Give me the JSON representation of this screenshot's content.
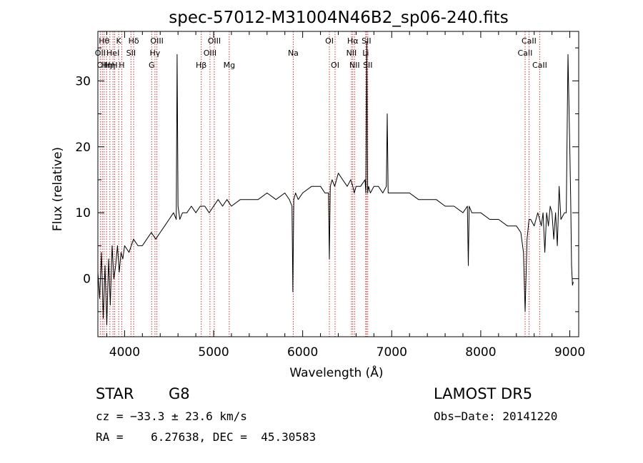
{
  "chart_data": {
    "type": "line",
    "title": "spec-57012-M31004N46B2_sp06-240.fits",
    "xlabel": "Wavelength (Å)",
    "ylabel": "Flux (relative)",
    "xlim": [
      3700,
      9100
    ],
    "ylim": [
      -8.8,
      37.5
    ],
    "xticks": [
      4000,
      5000,
      6000,
      7000,
      8000,
      9000
    ],
    "yticks": [
      0,
      10,
      20,
      30
    ],
    "grid": false,
    "legend": "none",
    "line_color": "#000000",
    "marker_color": "#cc3333",
    "series": [
      {
        "x": [
          3700,
          3720,
          3740,
          3760,
          3780,
          3800,
          3820,
          3840,
          3860,
          3880,
          3900,
          3920,
          3940,
          3960,
          3980,
          4000,
          4050,
          4100,
          4150,
          4200,
          4250,
          4300,
          4350,
          4400,
          4450,
          4500,
          4550,
          4580,
          4590,
          4600,
          4620,
          4650,
          4700,
          4750,
          4800,
          4850,
          4900,
          4950,
          5000,
          5050,
          5100,
          5150,
          5200,
          5300,
          5400,
          5500,
          5600,
          5700,
          5800,
          5850,
          5880,
          5890,
          5900,
          5920,
          5950,
          6000,
          6100,
          6200,
          6250,
          6290,
          6300,
          6310,
          6330,
          6360,
          6400,
          6450,
          6500,
          6540,
          6563,
          6580,
          6600,
          6650,
          6700,
          6710,
          6720,
          6730,
          6740,
          6760,
          6800,
          6850,
          6900,
          6940,
          6950,
          6960,
          7000,
          7100,
          7200,
          7300,
          7400,
          7500,
          7600,
          7700,
          7800,
          7850,
          7860,
          7870,
          7900,
          8000,
          8100,
          8200,
          8300,
          8400,
          8450,
          8480,
          8498,
          8520,
          8542,
          8560,
          8600,
          8640,
          8662,
          8680,
          8700,
          8720,
          8740,
          8760,
          8780,
          8800,
          8820,
          8840,
          8860,
          8880,
          8900,
          8940,
          8960,
          8980,
          9000,
          9010,
          9020,
          9030,
          9040
        ],
        "y": [
          1,
          -3,
          4,
          -6,
          2,
          -7,
          3,
          -4,
          5,
          0,
          2,
          5,
          1,
          4,
          3,
          5,
          4,
          6,
          5,
          5,
          6,
          7,
          6,
          7,
          8,
          9,
          10,
          9,
          34,
          11,
          9,
          10,
          10,
          11,
          10,
          11,
          11,
          10,
          11,
          12,
          11,
          12,
          11,
          12,
          12,
          12,
          13,
          12,
          13,
          12,
          11,
          -2,
          12,
          13,
          12,
          13,
          14,
          14,
          13,
          13,
          3,
          14,
          15,
          14,
          16,
          15,
          14,
          15,
          14,
          13,
          14,
          14,
          15,
          13,
          36,
          13,
          14,
          13,
          14,
          14,
          13,
          14,
          25,
          13,
          13,
          13,
          13,
          12,
          12,
          12,
          11,
          11,
          10,
          11,
          2,
          11,
          10,
          10,
          9,
          9,
          8,
          8,
          7,
          4,
          -5,
          6,
          9,
          9,
          8,
          10,
          9,
          8,
          10,
          4,
          10,
          8,
          11,
          10,
          6,
          10,
          5,
          14,
          9,
          10,
          10,
          34,
          20,
          12,
          2,
          -1,
          -0.5
        ]
      }
    ],
    "line_markers": [
      {
        "x": 3727,
        "label": "OII",
        "row": 2
      },
      {
        "x": 3750,
        "label": "OII",
        "row": 3
      },
      {
        "x": 3770,
        "label": "Hθ",
        "row": 1
      },
      {
        "x": 3797,
        "label": "Hη",
        "row": 3
      },
      {
        "x": 3835,
        "label": "Hη",
        "row": 3
      },
      {
        "x": 3870,
        "label": "HeI",
        "row": 2
      },
      {
        "x": 3889,
        "label": "H",
        "row": 3
      },
      {
        "x": 3934,
        "label": "K",
        "row": 1
      },
      {
        "x": 3968,
        "label": "H",
        "row": 3
      },
      {
        "x": 4072,
        "label": "SII",
        "row": 2
      },
      {
        "x": 4102,
        "label": "Hδ",
        "row": 1
      },
      {
        "x": 4304,
        "label": "G",
        "row": 3
      },
      {
        "x": 4341,
        "label": "Hγ",
        "row": 2
      },
      {
        "x": 4363,
        "label": "OIII",
        "row": 1
      },
      {
        "x": 4861,
        "label": "Hβ",
        "row": 3
      },
      {
        "x": 4959,
        "label": "OIII",
        "row": 2
      },
      {
        "x": 5007,
        "label": "OIII",
        "row": 1
      },
      {
        "x": 5175,
        "label": "Mg",
        "row": 3
      },
      {
        "x": 5894,
        "label": "Na",
        "row": 2
      },
      {
        "x": 6300,
        "label": "OI",
        "row": 1
      },
      {
        "x": 6364,
        "label": "OI",
        "row": 3
      },
      {
        "x": 6548,
        "label": "NII",
        "row": 2
      },
      {
        "x": 6563,
        "label": "Hα",
        "row": 1
      },
      {
        "x": 6583,
        "label": "NII",
        "row": 3
      },
      {
        "x": 6708,
        "label": "Li",
        "row": 2
      },
      {
        "x": 6716,
        "label": "SII",
        "row": 1
      },
      {
        "x": 6731,
        "label": "SII",
        "row": 3
      },
      {
        "x": 8498,
        "label": "CaII",
        "row": 2
      },
      {
        "x": 8542,
        "label": "CaII",
        "row": 1
      },
      {
        "x": 8662,
        "label": "CaII",
        "row": 3
      }
    ]
  },
  "info": {
    "class_label": "STAR",
    "subclass": "G8",
    "survey": "LAMOST DR5",
    "cz": "cz = −33.3 ± 23.6 km/s",
    "obs_date": "Obs−Date: 20141220",
    "coords": "RA =    6.27638, DEC =  45.30583"
  }
}
